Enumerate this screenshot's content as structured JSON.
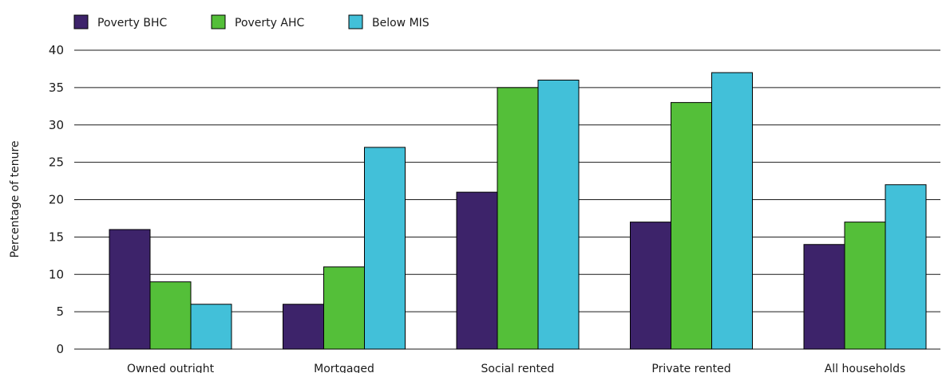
{
  "chart_data": {
    "type": "bar",
    "title": "",
    "xlabel": "",
    "ylabel": "Percentage of tenure",
    "ylim": [
      0,
      40
    ],
    "yticks": [
      0,
      5,
      10,
      15,
      20,
      25,
      30,
      35,
      40
    ],
    "grid": true,
    "legend_position": "top-left",
    "categories": [
      "Owned outright",
      "Mortgaged",
      "Social rented",
      "Private rented",
      "All households"
    ],
    "series": [
      {
        "name": "Poverty BHC",
        "color": "#3d236a",
        "values": [
          16,
          6,
          21,
          17,
          14
        ]
      },
      {
        "name": "Poverty AHC",
        "color": "#54bf39",
        "values": [
          9,
          11,
          35,
          33,
          17
        ]
      },
      {
        "name": "Below MIS",
        "color": "#42c0d9",
        "values": [
          6,
          27,
          36,
          37,
          22
        ]
      }
    ]
  }
}
